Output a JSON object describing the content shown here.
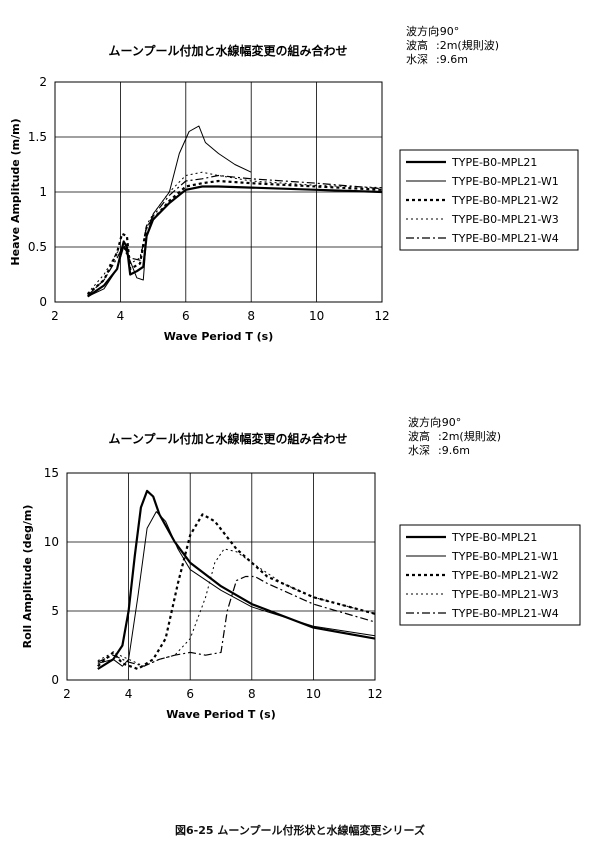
{
  "caption": "図6-25 ムーンプール付形状と水線幅変更シリーズ",
  "chart_data": [
    {
      "type": "line",
      "title": "ムーンプール付加と水線幅変更の組み合わせ",
      "conditions": [
        {
          "label": "波方向",
          "value": ":90°"
        },
        {
          "label": "波高",
          "value": ":2m(規則波)"
        },
        {
          "label": "水深",
          "value": ":9.6m"
        }
      ],
      "xlabel": "Wave Period T (s)",
      "ylabel": "Heave Amplitude (m/m)",
      "xlim": [
        2,
        12
      ],
      "ylim": [
        0,
        2
      ],
      "xticks": [
        "2",
        "4",
        "6",
        "8",
        "10",
        "12"
      ],
      "yticks": [
        "0",
        "0.5",
        "1",
        "1.5",
        "2"
      ],
      "grid": true,
      "legend": "right",
      "series": [
        {
          "name": "TYPE-B0-MPL21",
          "style": "solid-thick",
          "points": [
            [
              3,
              0.05
            ],
            [
              3.5,
              0.15
            ],
            [
              3.9,
              0.3
            ],
            [
              4.1,
              0.55
            ],
            [
              4.2,
              0.5
            ],
            [
              4.3,
              0.25
            ],
            [
              4.5,
              0.28
            ],
            [
              4.7,
              0.32
            ],
            [
              4.8,
              0.6
            ],
            [
              5.0,
              0.75
            ],
            [
              5.5,
              0.9
            ],
            [
              6.0,
              1.02
            ],
            [
              6.5,
              1.05
            ],
            [
              7,
              1.05
            ],
            [
              8,
              1.04
            ],
            [
              10,
              1.02
            ],
            [
              12,
              1.0
            ]
          ]
        },
        {
          "name": "TYPE-B0-MPL21-W1",
          "style": "solid-thin",
          "points": [
            [
              3,
              0.05
            ],
            [
              3.5,
              0.12
            ],
            [
              3.9,
              0.3
            ],
            [
              4.1,
              0.5
            ],
            [
              4.2,
              0.45
            ],
            [
              4.5,
              0.22
            ],
            [
              4.7,
              0.2
            ],
            [
              4.8,
              0.6
            ],
            [
              5.0,
              0.8
            ],
            [
              5.5,
              1.0
            ],
            [
              5.8,
              1.35
            ],
            [
              6.1,
              1.55
            ],
            [
              6.4,
              1.6
            ],
            [
              6.6,
              1.45
            ],
            [
              7.0,
              1.35
            ],
            [
              7.5,
              1.25
            ],
            [
              8.0,
              1.18
            ]
          ]
        },
        {
          "name": "TYPE-B0-MPL21-W2",
          "style": "dotted-thick",
          "points": [
            [
              3,
              0.07
            ],
            [
              3.5,
              0.2
            ],
            [
              3.9,
              0.45
            ],
            [
              4.05,
              0.62
            ],
            [
              4.2,
              0.6
            ],
            [
              4.3,
              0.3
            ],
            [
              4.6,
              0.35
            ],
            [
              4.8,
              0.68
            ],
            [
              5.0,
              0.75
            ],
            [
              5.5,
              0.92
            ],
            [
              6,
              1.05
            ],
            [
              6.5,
              1.08
            ],
            [
              7,
              1.1
            ],
            [
              8,
              1.08
            ],
            [
              10,
              1.05
            ],
            [
              12,
              1.02
            ]
          ]
        },
        {
          "name": "TYPE-B0-MPL21-W3",
          "style": "dotted-thin",
          "points": [
            [
              3,
              0.08
            ],
            [
              3.5,
              0.25
            ],
            [
              3.9,
              0.45
            ],
            [
              4.1,
              0.5
            ],
            [
              4.3,
              0.35
            ],
            [
              4.6,
              0.4
            ],
            [
              4.8,
              0.7
            ],
            [
              5.0,
              0.8
            ],
            [
              5.5,
              1.0
            ],
            [
              6,
              1.15
            ],
            [
              6.5,
              1.18
            ],
            [
              7,
              1.15
            ],
            [
              8,
              1.1
            ],
            [
              10,
              1.06
            ],
            [
              12,
              1.04
            ]
          ]
        },
        {
          "name": "TYPE-B0-MPL21-W4",
          "style": "dashdot",
          "points": [
            [
              3,
              0.06
            ],
            [
              3.5,
              0.2
            ],
            [
              3.9,
              0.4
            ],
            [
              4.1,
              0.52
            ],
            [
              4.3,
              0.4
            ],
            [
              4.6,
              0.38
            ],
            [
              4.8,
              0.68
            ],
            [
              5.0,
              0.78
            ],
            [
              5.5,
              0.97
            ],
            [
              6,
              1.1
            ],
            [
              6.5,
              1.12
            ],
            [
              7,
              1.15
            ],
            [
              8,
              1.12
            ],
            [
              10,
              1.08
            ],
            [
              12,
              1.03
            ]
          ]
        }
      ]
    },
    {
      "type": "line",
      "title": "ムーンプール付加と水線幅変更の組み合わせ",
      "conditions": [
        {
          "label": "波方向",
          "value": ":90°"
        },
        {
          "label": "波高",
          "value": ":2m(規則波)"
        },
        {
          "label": "水深",
          "value": ":9.6m"
        }
      ],
      "xlabel": "Wave Period T (s)",
      "ylabel": "Roll Amplitude (deg/m)",
      "xlim": [
        2,
        12
      ],
      "ylim": [
        0,
        15
      ],
      "xticks": [
        "2",
        "4",
        "6",
        "8",
        "10",
        "12"
      ],
      "yticks": [
        "0",
        "5",
        "10",
        "15"
      ],
      "grid": true,
      "legend": "right",
      "series": [
        {
          "name": "TYPE-B0-MPL21",
          "style": "solid-thick",
          "points": [
            [
              3,
              0.8
            ],
            [
              3.5,
              1.5
            ],
            [
              3.8,
              2.5
            ],
            [
              4.0,
              5
            ],
            [
              4.2,
              9
            ],
            [
              4.4,
              12.5
            ],
            [
              4.6,
              13.7
            ],
            [
              4.8,
              13.3
            ],
            [
              5.0,
              12
            ],
            [
              5.5,
              10
            ],
            [
              6,
              8.5
            ],
            [
              7,
              6.8
            ],
            [
              8,
              5.5
            ],
            [
              10,
              3.8
            ],
            [
              12,
              3.0
            ]
          ]
        },
        {
          "name": "TYPE-B0-MPL21-W1",
          "style": "solid-thin",
          "points": [
            [
              3,
              1.2
            ],
            [
              3.5,
              1.5
            ],
            [
              3.8,
              1.0
            ],
            [
              4.0,
              1.5
            ],
            [
              4.3,
              6
            ],
            [
              4.6,
              11
            ],
            [
              4.9,
              12.2
            ],
            [
              5.2,
              11.5
            ],
            [
              5.6,
              9.5
            ],
            [
              6,
              8
            ],
            [
              7,
              6.5
            ],
            [
              8,
              5.3
            ],
            [
              10,
              3.9
            ],
            [
              12,
              3.2
            ]
          ]
        },
        {
          "name": "TYPE-B0-MPL21-W2",
          "style": "dotted-thick",
          "points": [
            [
              3,
              1.0
            ],
            [
              3.5,
              2.0
            ],
            [
              3.8,
              1.2
            ],
            [
              4.3,
              0.8
            ],
            [
              4.8,
              1.5
            ],
            [
              5.2,
              3
            ],
            [
              5.6,
              7
            ],
            [
              6.0,
              10.5
            ],
            [
              6.4,
              12
            ],
            [
              6.8,
              11.5
            ],
            [
              7.5,
              9.5
            ],
            [
              8.5,
              7.5
            ],
            [
              10,
              6
            ],
            [
              12,
              4.8
            ]
          ]
        },
        {
          "name": "TYPE-B0-MPL21-W3",
          "style": "dotted-thin",
          "points": [
            [
              3,
              1.4
            ],
            [
              3.5,
              2.0
            ],
            [
              4.0,
              1.5
            ],
            [
              4.5,
              1.0
            ],
            [
              5.0,
              1.5
            ],
            [
              5.5,
              1.8
            ],
            [
              6.0,
              3
            ],
            [
              6.5,
              6
            ],
            [
              6.8,
              8.5
            ],
            [
              7.1,
              9.5
            ],
            [
              7.5,
              9.3
            ],
            [
              8,
              8.5
            ],
            [
              9,
              7
            ],
            [
              10,
              6
            ],
            [
              12,
              4.8
            ]
          ]
        },
        {
          "name": "TYPE-B0-MPL21-W4",
          "style": "dashdot",
          "points": [
            [
              3,
              1.3
            ],
            [
              3.5,
              1.8
            ],
            [
              4.0,
              1.3
            ],
            [
              4.5,
              1.0
            ],
            [
              5.0,
              1.5
            ],
            [
              5.5,
              1.8
            ],
            [
              6.0,
              2.0
            ],
            [
              6.5,
              1.8
            ],
            [
              7.0,
              2.0
            ],
            [
              7.2,
              5
            ],
            [
              7.5,
              7.2
            ],
            [
              7.8,
              7.5
            ],
            [
              8.1,
              7.5
            ],
            [
              8.5,
              7
            ],
            [
              9,
              6.5
            ],
            [
              10,
              5.5
            ],
            [
              12,
              4.2
            ]
          ]
        }
      ]
    }
  ]
}
